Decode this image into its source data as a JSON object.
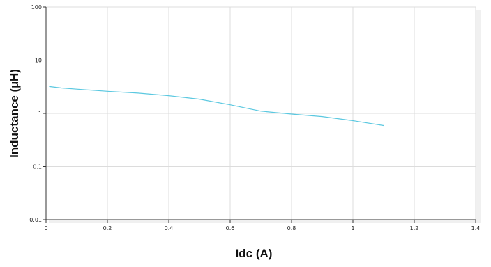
{
  "chart_data": {
    "type": "line",
    "title": "",
    "xlabel": "Idc (A)",
    "ylabel": "Inductance (µH)",
    "x_scale": "linear",
    "y_scale": "log",
    "xlim": [
      0,
      1.4
    ],
    "ylim": [
      0.01,
      100
    ],
    "x_ticks": [
      0,
      0.2,
      0.4,
      0.6,
      0.8,
      1,
      1.2,
      1.4
    ],
    "x_tick_labels": [
      "0",
      "0.2",
      "0.4",
      "0.6",
      "0.8",
      "1",
      "1.2",
      "1.4"
    ],
    "y_ticks": [
      0.01,
      0.1,
      1,
      10,
      100
    ],
    "y_tick_labels": [
      "0.01",
      "0.1",
      "1",
      "10",
      "100"
    ],
    "grid": true,
    "legend": false,
    "line_color": "#5bc8e0",
    "series": [
      {
        "x": [
          0.01,
          0.05,
          0.1,
          0.2,
          0.3,
          0.4,
          0.5,
          0.6,
          0.7,
          0.8,
          0.9,
          1.0,
          1.1
        ],
        "values": [
          3.2,
          3.0,
          2.85,
          2.6,
          2.4,
          2.15,
          1.85,
          1.45,
          1.1,
          0.97,
          0.87,
          0.73,
          0.59
        ]
      }
    ]
  }
}
